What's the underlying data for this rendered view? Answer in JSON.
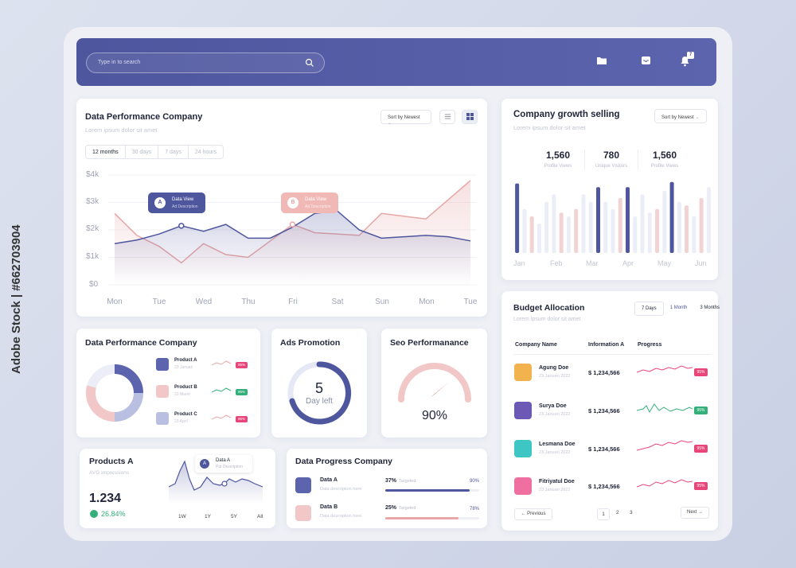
{
  "search": {
    "placeholder": "Type in to search"
  },
  "notifications": {
    "count": "7"
  },
  "perf_chart": {
    "title": "Data Performance Company",
    "subtitle": "Lorem ipsum dolor sit amet",
    "sort_label": "Sort by Newest",
    "tabs": [
      "12 months",
      "30 days",
      "7 days",
      "24 hours"
    ],
    "tip_a": {
      "letter": "A",
      "label": "Data View",
      "desc": "Ad Description"
    },
    "tip_b": {
      "letter": "B",
      "label": "Data View",
      "desc": "Ad Description"
    }
  },
  "chart_data": {
    "type": "area",
    "categories": [
      "Mon",
      "Tue",
      "Wed",
      "Thu",
      "Fri",
      "Sat",
      "Sun",
      "Mon",
      "Tue"
    ],
    "y_ticks": [
      "$4k",
      "$3k",
      "$2k",
      "$1k",
      "$0"
    ],
    "ylim": [
      0,
      4000
    ],
    "x": [
      0,
      0.5,
      1,
      1.5,
      2,
      2.5,
      3,
      3.5,
      4,
      4.5,
      5,
      5.5,
      6,
      6.5,
      7,
      7.5,
      8
    ],
    "series": [
      {
        "color": "#4e569e",
        "values": [
          1500,
          1630,
          1850,
          2150,
          1950,
          2200,
          1700,
          1700,
          2100,
          2600,
          2700,
          2000,
          1700,
          1750,
          1800,
          1750,
          1600
        ]
      },
      {
        "color": "#e8a6a6",
        "values": [
          2600,
          1800,
          1400,
          800,
          1500,
          1100,
          1000,
          1600,
          2200,
          1900,
          1850,
          1800,
          2600,
          2500,
          2400,
          3100,
          3800
        ]
      }
    ],
    "grid": true
  },
  "growth": {
    "title": "Company growth selling",
    "subtitle": "Lorem ipsum dolor sit amet",
    "sort_label": "Sort by Newest",
    "stats": [
      {
        "value": "1,560",
        "label": "Profile Views"
      },
      {
        "value": "780",
        "label": "Unique Visitors"
      },
      {
        "value": "1,560",
        "label": "Profile Views"
      }
    ],
    "months": [
      "Jan",
      "Feb",
      "Mar",
      "Apr",
      "May",
      "Jun"
    ],
    "bars": [
      {
        "h": 0.95,
        "c": "#4e569e"
      },
      {
        "h": 0.6,
        "c": "#eceef7"
      },
      {
        "h": 0.5,
        "c": "#f1d3d3"
      },
      {
        "h": 0.4,
        "c": "#eceef7"
      },
      {
        "h": 0.7,
        "c": "#eceef7"
      },
      {
        "h": 0.8,
        "c": "#eceef7"
      },
      {
        "h": 0.55,
        "c": "#f1d3d3"
      },
      {
        "h": 0.5,
        "c": "#eceef7"
      },
      {
        "h": 0.6,
        "c": "#f1d3d3"
      },
      {
        "h": 0.8,
        "c": "#eceef7"
      },
      {
        "h": 0.7,
        "c": "#eceef7"
      },
      {
        "h": 0.9,
        "c": "#4e569e"
      },
      {
        "h": 0.7,
        "c": "#eceef7"
      },
      {
        "h": 0.6,
        "c": "#eceef7"
      },
      {
        "h": 0.75,
        "c": "#f1d3d3"
      },
      {
        "h": 0.9,
        "c": "#4e569e"
      },
      {
        "h": 0.5,
        "c": "#eceef7"
      },
      {
        "h": 0.8,
        "c": "#eceef7"
      },
      {
        "h": 0.55,
        "c": "#eceef7"
      },
      {
        "h": 0.6,
        "c": "#f1d3d3"
      },
      {
        "h": 0.85,
        "c": "#eceef7"
      },
      {
        "h": 0.97,
        "c": "#4e569e"
      },
      {
        "h": 0.7,
        "c": "#eceef7"
      },
      {
        "h": 0.65,
        "c": "#f1d3d3"
      },
      {
        "h": 0.5,
        "c": "#eceef7"
      },
      {
        "h": 0.75,
        "c": "#f1d3d3"
      },
      {
        "h": 0.9,
        "c": "#eceef7"
      }
    ]
  },
  "perf_small": {
    "title": "Data Performance Company",
    "products": [
      {
        "name": "Product A",
        "date": "23 Januari",
        "pct": "95%",
        "color": "#e8457a",
        "icon_color": "#5b64ad"
      },
      {
        "name": "Product B",
        "date": "23 Maret",
        "pct": "95%",
        "color": "#33b07a",
        "icon_color": "#f1c7c7"
      },
      {
        "name": "Product C",
        "date": "23 April",
        "pct": "95%",
        "color": "#e8457a",
        "icon_color": "#b9bfe0"
      }
    ]
  },
  "ads": {
    "title": "Ads Promotion",
    "value": "5",
    "label": "Day left"
  },
  "seo": {
    "title": "Seo Performanance",
    "value": "90%"
  },
  "budget": {
    "title": "Budget Allocation",
    "subtitle": "Lorem ipsum dolor sit amet",
    "tabs": [
      "7 Days",
      "1 Month",
      "3 Months"
    ],
    "headers": [
      "Company Name",
      "Information A",
      "Progress"
    ],
    "rows": [
      {
        "name": "Agung Doe",
        "date": "23 Januari 2022",
        "amount": "$ 1,234,566",
        "pct": "95%",
        "pct_color": "#e8457a",
        "icon_color": "#f2b24e"
      },
      {
        "name": "Surya Doe",
        "date": "23 Januari 2022",
        "amount": "$ 1,234,566",
        "pct": "95%",
        "pct_color": "#33b07a",
        "icon_color": "#6b59b5"
      },
      {
        "name": "Lesmana Doe",
        "date": "23 Januari 2022",
        "amount": "$ 1,234,566",
        "pct": "95%",
        "pct_color": "#e8457a",
        "icon_color": "#3ec6c4"
      },
      {
        "name": "Fitriyatul Doe",
        "date": "23 Januari 2022",
        "amount": "$ 1,234,566",
        "pct": "95%",
        "pct_color": "#e8457a",
        "icon_color": "#ef6fa1"
      }
    ],
    "prev": "Previous",
    "next": "Next",
    "pages": [
      "1",
      "2",
      "3"
    ]
  },
  "products_a": {
    "title": "Products A",
    "subtitle": "AVG Impressions",
    "value": "1.234",
    "change": "26.84%",
    "tip": {
      "letter": "A",
      "label": "Data A",
      "desc": "Put Description"
    },
    "ranges": [
      "1W",
      "1Y",
      "5Y",
      "All"
    ]
  },
  "progress": {
    "title": "Data Progress Company",
    "items": [
      {
        "name": "Data A",
        "desc": "Data description here",
        "pct": "37%",
        "tag": "Targeted",
        "value": "90%",
        "fill": 0.9,
        "color": "#4e569e",
        "icon_color": "#5b64ad"
      },
      {
        "name": "Data B",
        "desc": "Data description here",
        "pct": "25%",
        "tag": "Targeted",
        "value": "78%",
        "fill": 0.78,
        "color": "#e8a6a6",
        "icon_color": "#f1c7c7"
      }
    ]
  },
  "watermark": {
    "text": "Adobe Stock | #662703904"
  }
}
